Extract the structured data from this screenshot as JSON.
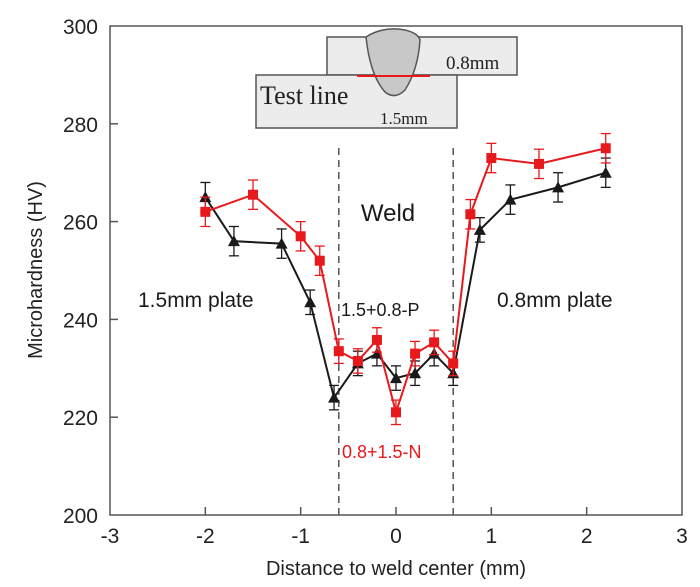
{
  "chart_data": {
    "type": "line",
    "title": "",
    "xlabel": "Distance to weld center (mm)",
    "ylabel": "Microhardness (HV)",
    "xlim": [
      -3,
      3
    ],
    "ylim": [
      200,
      300
    ],
    "xticks": [
      "-3",
      "-2",
      "-1",
      "0",
      "1",
      "2",
      "3"
    ],
    "yticks": [
      "200",
      "220",
      "240",
      "260",
      "280",
      "300"
    ],
    "xtick_values": [
      -3,
      -2,
      -1,
      0,
      1,
      2,
      3
    ],
    "ytick_values": [
      200,
      220,
      240,
      260,
      280,
      300
    ],
    "grid": false,
    "weld_boundaries": [
      -0.6,
      0.6
    ],
    "series": [
      {
        "name": "1.5+0.8-P",
        "color": "#1a1a1a",
        "marker": "triangle",
        "x": [
          -2.0,
          -1.7,
          -1.2,
          -0.9,
          -0.65,
          -0.4,
          -0.2,
          0.0,
          0.2,
          0.4,
          0.6,
          0.88,
          1.2,
          1.7,
          2.2
        ],
        "y": [
          265,
          256,
          255.5,
          243.5,
          224,
          231,
          233,
          228,
          229,
          233,
          229,
          258.3,
          264.5,
          267,
          270
        ],
        "err": [
          3,
          3,
          3,
          2.5,
          2.5,
          2.5,
          2.5,
          2.5,
          2.5,
          2.5,
          2.5,
          2.5,
          3,
          3,
          3
        ]
      },
      {
        "name": "0.8+1.5-N",
        "color": "#e8191c",
        "marker": "square",
        "x": [
          -2.0,
          -1.5,
          -1.0,
          -0.8,
          -0.6,
          -0.4,
          -0.2,
          0.0,
          0.2,
          0.4,
          0.6,
          0.78,
          1.0,
          1.5,
          2.2
        ],
        "y": [
          262,
          265.5,
          257,
          252,
          233.5,
          231.5,
          235.8,
          221,
          233,
          235.3,
          231,
          261.5,
          273,
          271.8,
          275
        ],
        "err": [
          3,
          3,
          3,
          3,
          2.5,
          2.5,
          2.5,
          2.5,
          2.5,
          2.5,
          2.5,
          3,
          3,
          3,
          3
        ]
      }
    ],
    "annotations": {
      "weld": "Weld",
      "left_plate": "1.5mm plate",
      "right_plate": "0.8mm plate",
      "series_p": "1.5+0.8-P",
      "series_n": "0.8+1.5-N"
    }
  },
  "inset": {
    "test_line": "Test line",
    "thin_plate": "0.8mm",
    "thick_plate": "1.5mm",
    "test_line_color": "#e8191c",
    "weld_fill": "#c8c8c8",
    "plate_fill": "#ececec"
  }
}
